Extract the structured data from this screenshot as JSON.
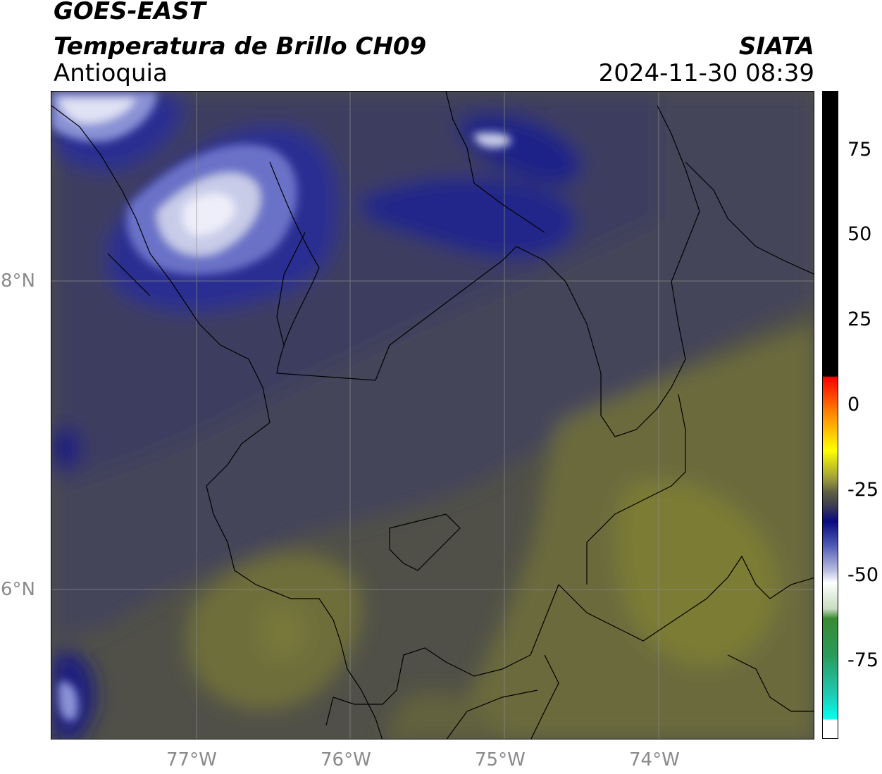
{
  "header": {
    "line1": "GOES-EAST",
    "line2": "Temperatura de Brillo CH09",
    "line3": "Antioquia",
    "agency": "SIATA",
    "datetime": "2024-11-30 08:39"
  },
  "map": {
    "lon_labels": [
      "77°W",
      "76°W",
      "75°W",
      "74°W"
    ],
    "lat_labels": [
      "8°N",
      "6°N"
    ],
    "colors": {
      "background_warm": "#5a5a3e",
      "olive": "#7a7a38",
      "gray_dark": "#3d3d52",
      "navy": "#1a1f7a",
      "deep_blue": "#0d1190",
      "cold_white": "#e8eaf8"
    }
  },
  "colorbar": {
    "tick_labels": [
      "75",
      "50",
      "25",
      "0",
      "-25",
      "-50",
      "-75"
    ],
    "stops": [
      {
        "pos": 0.0,
        "color": "#000000"
      },
      {
        "pos": 0.44,
        "color": "#000000"
      },
      {
        "pos": 0.442,
        "color": "#ff0000"
      },
      {
        "pos": 0.5,
        "color": "#ff8c00"
      },
      {
        "pos": 0.555,
        "color": "#ffff00"
      },
      {
        "pos": 0.6,
        "color": "#9a9a3a"
      },
      {
        "pos": 0.62,
        "color": "#5e5e44"
      },
      {
        "pos": 0.64,
        "color": "#3d3d52"
      },
      {
        "pos": 0.665,
        "color": "#0a0a80"
      },
      {
        "pos": 0.7,
        "color": "#4a55b0"
      },
      {
        "pos": 0.74,
        "color": "#b8bce0"
      },
      {
        "pos": 0.76,
        "color": "#ffffff"
      },
      {
        "pos": 0.8,
        "color": "#c8dcc0"
      },
      {
        "pos": 0.815,
        "color": "#3a8a30"
      },
      {
        "pos": 0.87,
        "color": "#2a9a5a"
      },
      {
        "pos": 0.93,
        "color": "#20c8b0"
      },
      {
        "pos": 0.97,
        "color": "#00ffee"
      },
      {
        "pos": 0.972,
        "color": "#ffffff"
      },
      {
        "pos": 1.0,
        "color": "#ffffff"
      }
    ]
  }
}
